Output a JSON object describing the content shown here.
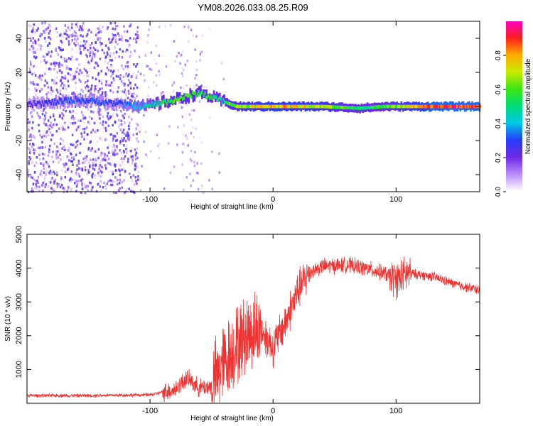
{
  "title": "YM08.2026.033.08.25.R09",
  "chart_data": [
    {
      "type": "heatmap",
      "name": "spectrogram",
      "xlabel": "Height of straight line (km)",
      "ylabel": "Frequency (Hz)",
      "xlim": [
        -200,
        168
      ],
      "ylim": [
        -50,
        50
      ],
      "xticks": [
        -100,
        0,
        100
      ],
      "yticks": [
        -40,
        -20,
        0,
        20,
        40
      ],
      "colorbar": {
        "label": "Normalized spectral amplitude",
        "range": [
          0,
          1
        ],
        "ticks": [
          0.0,
          0.2,
          0.4,
          0.6,
          0.8
        ],
        "tick_labels": [
          "0.0",
          "0.2",
          "0.4",
          "0.6",
          "0.8"
        ]
      },
      "trace": [
        {
          "x": -200,
          "freq": 1,
          "amp": 0.25
        },
        {
          "x": -160,
          "freq": 4,
          "amp": 0.35
        },
        {
          "x": -130,
          "freq": 2,
          "amp": 0.3
        },
        {
          "x": -105,
          "freq": 0,
          "amp": 0.45
        },
        {
          "x": -80,
          "freq": 4,
          "amp": 0.65
        },
        {
          "x": -60,
          "freq": 8,
          "amp": 0.6
        },
        {
          "x": -45,
          "freq": 4,
          "amp": 0.55
        },
        {
          "x": -30,
          "freq": 0,
          "amp": 0.7
        },
        {
          "x": 0,
          "freq": 0,
          "amp": 0.85
        },
        {
          "x": 40,
          "freq": 0,
          "amp": 0.75
        },
        {
          "x": 70,
          "freq": -1,
          "amp": 0.55
        },
        {
          "x": 90,
          "freq": 0,
          "amp": 0.6
        },
        {
          "x": 130,
          "freq": 0,
          "amp": 0.95
        },
        {
          "x": 168,
          "freq": 0,
          "amp": 0.95
        }
      ],
      "noise_extent_km": [
        -200,
        -40
      ]
    },
    {
      "type": "line",
      "name": "snr",
      "xlabel": "Height of straight line (km)",
      "ylabel": "SNR (10 * v/v)",
      "xlim": [
        -200,
        168
      ],
      "ylim": [
        0,
        5000
      ],
      "xticks": [
        -100,
        0,
        100
      ],
      "yticks": [
        1000,
        2000,
        3000,
        4000,
        5000
      ],
      "color": "#ee3333",
      "x": [
        -200,
        -150,
        -100,
        -80,
        -70,
        -60,
        -50,
        -40,
        -30,
        -20,
        -10,
        0,
        10,
        20,
        30,
        40,
        60,
        80,
        90,
        100,
        110,
        130,
        150,
        168
      ],
      "y": [
        230,
        230,
        250,
        400,
        750,
        450,
        500,
        1200,
        1700,
        2100,
        2200,
        1650,
        2400,
        3300,
        3900,
        4050,
        4100,
        3950,
        3850,
        3650,
        3850,
        3750,
        3500,
        3350
      ]
    }
  ]
}
